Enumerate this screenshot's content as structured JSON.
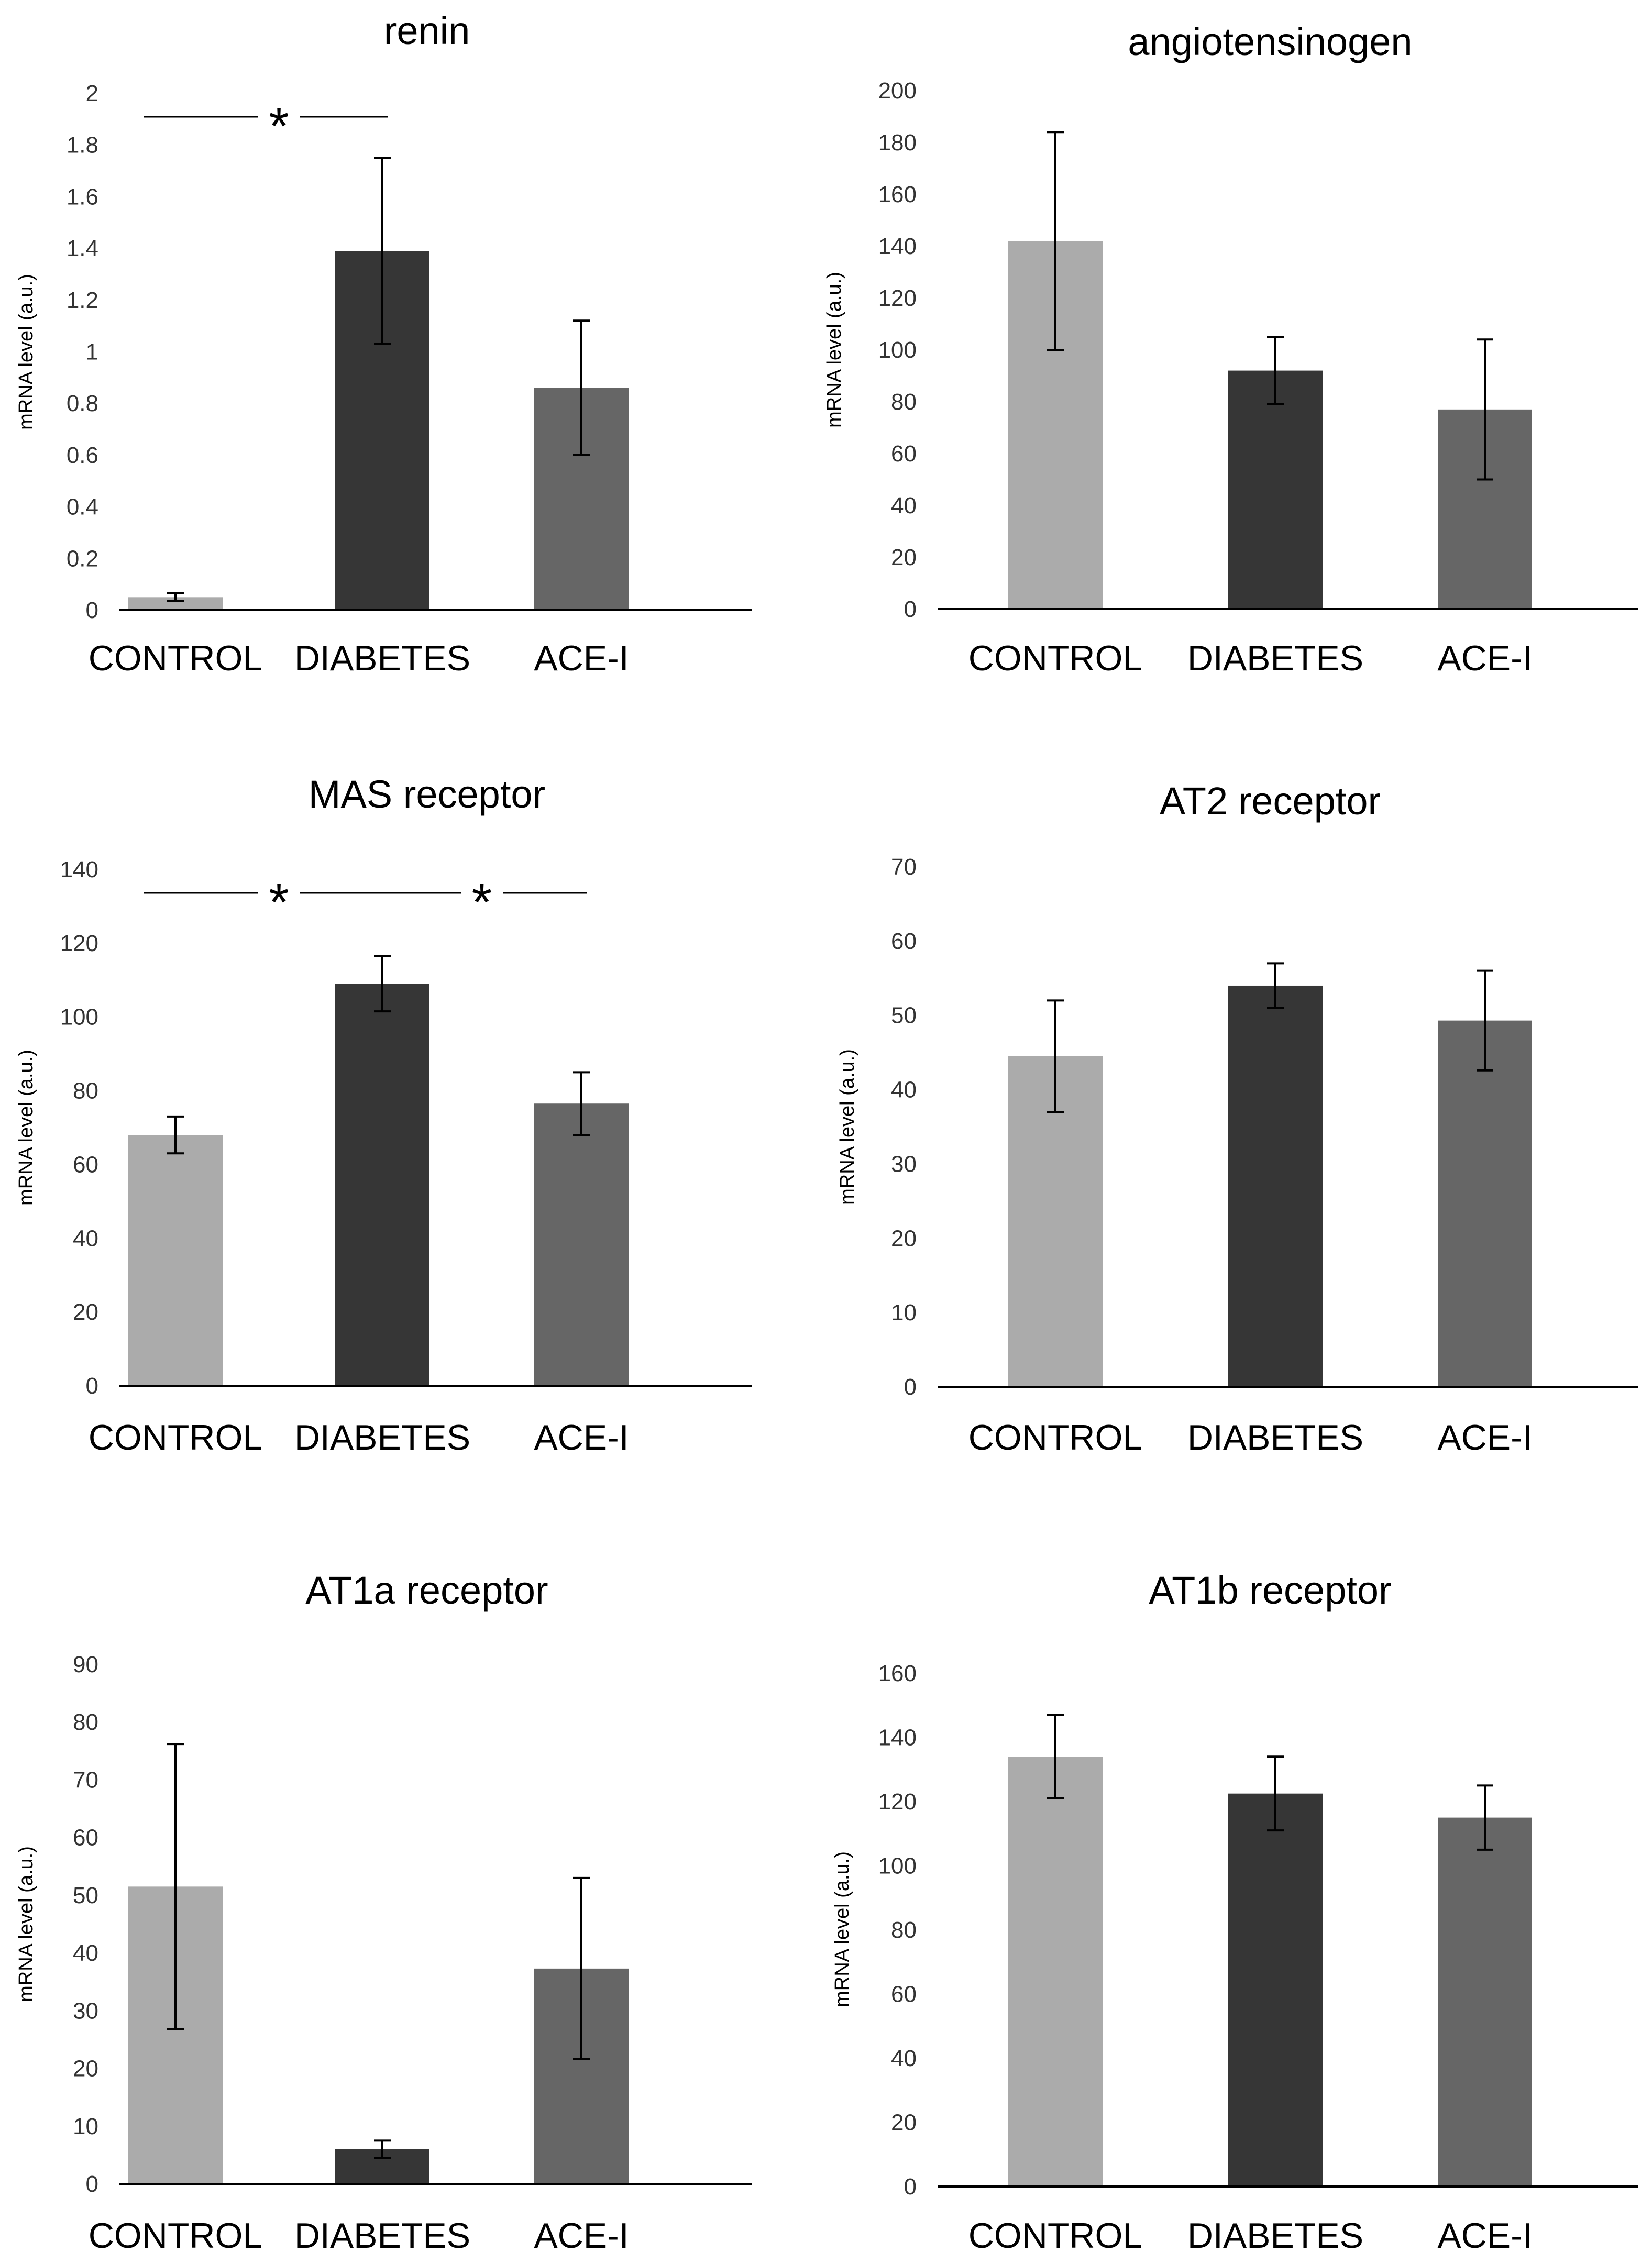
{
  "colors": {
    "control": "#ababab",
    "diabetes": "#363636",
    "ace": "#666666",
    "axis": "#000000",
    "error_bar": "#000000"
  },
  "chart_data": [
    {
      "type": "bar",
      "title": "renin",
      "ylabel": "mRNA level (a.u.)",
      "categories": [
        "CONTROL",
        "DIABETES",
        "ACE-I"
      ],
      "values": [
        0.05,
        1.39,
        0.86
      ],
      "errors": [
        0.015,
        0.36,
        0.26
      ],
      "ylim": [
        0,
        2
      ],
      "yticks": [
        0,
        0.2,
        0.4,
        0.6,
        0.8,
        1,
        1.2,
        1.4,
        1.6,
        1.8,
        2
      ],
      "ytick_labels": [
        "0",
        "0.2",
        "0.4",
        "0.6",
        "0.8",
        "1",
        "1.2",
        "1.4",
        "1.6",
        "1.8",
        "2"
      ],
      "significance": [
        {
          "from": 0,
          "to": 1,
          "label": "*"
        }
      ]
    },
    {
      "type": "bar",
      "title": "angiotensinogen",
      "ylabel": "mRNA level (a.u.)",
      "categories": [
        "CONTROL",
        "DIABETES",
        "ACE-I"
      ],
      "values": [
        142,
        92,
        77
      ],
      "errors": [
        42,
        13,
        27
      ],
      "ylim": [
        0,
        200
      ],
      "yticks": [
        0,
        20,
        40,
        60,
        80,
        100,
        120,
        140,
        160,
        180,
        200
      ],
      "ytick_labels": [
        "0",
        "20",
        "40",
        "60",
        "80",
        "100",
        "120",
        "140",
        "160",
        "180",
        "200"
      ],
      "significance": []
    },
    {
      "type": "bar",
      "title": "MAS receptor",
      "ylabel": "mRNA level (a.u.)",
      "categories": [
        "CONTROL",
        "DIABETES",
        "ACE-I"
      ],
      "values": [
        68,
        109,
        76.5
      ],
      "errors": [
        5,
        7.5,
        8.5
      ],
      "ylim": [
        0,
        140
      ],
      "yticks": [
        0,
        20,
        40,
        60,
        80,
        100,
        120,
        140
      ],
      "ytick_labels": [
        "0",
        "20",
        "40",
        "60",
        "80",
        "100",
        "120",
        "140"
      ],
      "significance": [
        {
          "from": 0,
          "to": 1,
          "label": "*"
        },
        {
          "from": 1,
          "to": 2,
          "label": "*"
        }
      ]
    },
    {
      "type": "bar",
      "title": "AT2 receptor",
      "ylabel": "mRNA level (a.u.)",
      "categories": [
        "CONTROL",
        "DIABETES",
        "ACE-I"
      ],
      "values": [
        44.5,
        54,
        49.3
      ],
      "errors": [
        7.5,
        3,
        6.7
      ],
      "ylim": [
        0,
        70
      ],
      "yticks": [
        0,
        10,
        20,
        30,
        40,
        50,
        60,
        70
      ],
      "ytick_labels": [
        "0",
        "10",
        "20",
        "30",
        "40",
        "50",
        "60",
        "70"
      ],
      "significance": []
    },
    {
      "type": "bar",
      "title": "AT1a receptor",
      "ylabel": "mRNA level (a.u.)",
      "categories": [
        "CONTROL",
        "DIABETES",
        "ACE-I"
      ],
      "values": [
        51.5,
        6,
        37.3
      ],
      "errors": [
        24.7,
        1.5,
        15.7
      ],
      "ylim": [
        0,
        90
      ],
      "yticks": [
        0,
        10,
        20,
        30,
        40,
        50,
        60,
        70,
        80,
        90
      ],
      "ytick_labels": [
        "0",
        "10",
        "20",
        "30",
        "40",
        "50",
        "60",
        "70",
        "80",
        "90"
      ],
      "significance": []
    },
    {
      "type": "bar",
      "title": "AT1b receptor",
      "ylabel": "mRNA level (a.u.)",
      "categories": [
        "CONTROL",
        "DIABETES",
        "ACE-I"
      ],
      "values": [
        134,
        122.5,
        115
      ],
      "errors": [
        13,
        11.5,
        10
      ],
      "ylim": [
        0,
        160
      ],
      "yticks": [
        0,
        20,
        40,
        60,
        80,
        100,
        120,
        140,
        160
      ],
      "ytick_labels": [
        "0",
        "20",
        "40",
        "60",
        "80",
        "100",
        "120",
        "140",
        "160"
      ],
      "significance": []
    }
  ]
}
